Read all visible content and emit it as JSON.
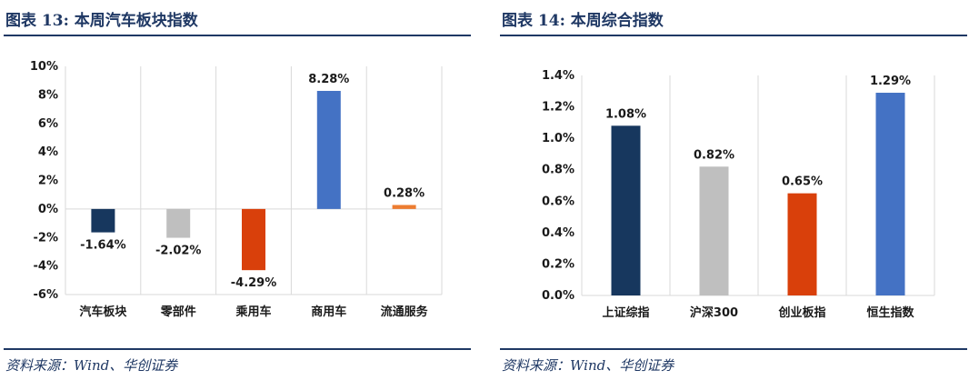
{
  "left": {
    "title": "图表 13:  本周汽车板块指数",
    "source": "资料来源：Wind、华创证券",
    "chart_data": {
      "type": "bar",
      "categories": [
        "汽车板块",
        "零部件",
        "乘用车",
        "商用车",
        "流通服务"
      ],
      "values": [
        -1.64,
        -2.02,
        -4.29,
        8.28,
        0.28
      ],
      "value_labels": [
        "-1.64%",
        "-2.02%",
        "-4.29%",
        "8.28%",
        "0.28%"
      ],
      "colors": [
        "#17375e",
        "#bfbfbf",
        "#d9400b",
        "#4472c4",
        "#ed7d31"
      ],
      "ylim": [
        -6,
        10
      ],
      "yticks": [
        -6,
        -4,
        -2,
        0,
        2,
        4,
        6,
        8,
        10
      ],
      "ytick_labels": [
        "-6%",
        "-4%",
        "-2%",
        "0%",
        "2%",
        "4%",
        "6%",
        "8%",
        "10%"
      ],
      "grid": "vertical-category-separators",
      "xlabel": "",
      "ylabel": ""
    }
  },
  "right": {
    "title": "图表 14:  本周综合指数",
    "source": "资料来源：Wind、华创证券",
    "chart_data": {
      "type": "bar",
      "categories": [
        "上证综指",
        "沪深300",
        "创业板指",
        "恒生指数"
      ],
      "values": [
        1.08,
        0.82,
        0.65,
        1.29
      ],
      "value_labels": [
        "1.08%",
        "0.82%",
        "0.65%",
        "1.29%"
      ],
      "colors": [
        "#17375e",
        "#bfbfbf",
        "#d9400b",
        "#4472c4"
      ],
      "ylim": [
        0,
        1.4
      ],
      "yticks": [
        0,
        0.2,
        0.4,
        0.6,
        0.8,
        1.0,
        1.2,
        1.4
      ],
      "ytick_labels": [
        "0.0%",
        "0.2%",
        "0.4%",
        "0.6%",
        "0.8%",
        "1.0%",
        "1.2%",
        "1.4%"
      ],
      "grid": "vertical-category-separators",
      "xlabel": "",
      "ylabel": ""
    }
  }
}
